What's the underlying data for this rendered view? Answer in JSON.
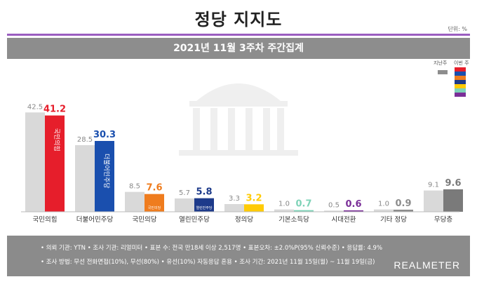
{
  "title": "정당 지지도",
  "unit_label": "단위: %",
  "subtitle": "2021년 11월 3주차 주간집계",
  "legend": {
    "prev_label": "지난주",
    "cur_label": "이번 주"
  },
  "colors": {
    "prev": "#d9d9d9",
    "parties": [
      "#e61e2b",
      "#1a4fae",
      "#ef7c1e",
      "#1d3a8a",
      "#ffcb05",
      "#7fd3b8",
      "#7a2f98",
      "#8c8c8c",
      "#7a7a7a"
    ]
  },
  "chart_data": {
    "type": "bar",
    "categories": [
      "국민의힘",
      "더불어민주당",
      "국민의당",
      "열린민주당",
      "정의당",
      "기본소득당",
      "시대전환",
      "기타 정당",
      "무당층"
    ],
    "series": [
      {
        "name": "지난주",
        "values": [
          42.5,
          28.5,
          8.5,
          5.7,
          3.3,
          1.0,
          0.5,
          1.0,
          9.1
        ]
      },
      {
        "name": "이번 주",
        "values": [
          41.2,
          30.3,
          7.6,
          5.8,
          3.2,
          0.7,
          0.6,
          0.9,
          9.6
        ]
      }
    ],
    "prev_labels": [
      "42.5",
      "28.5",
      "8.5",
      "5.7",
      "3.3",
      "1.0",
      "0.5",
      "1.0",
      "9.1"
    ],
    "cur_labels": [
      "41.2",
      "30.3",
      "7.6",
      "5.8",
      "3.2",
      "0.7",
      "0.6",
      "0.9",
      "9.6"
    ],
    "bar_logos": [
      "국민의힘",
      "더불어민주당",
      "국민의당",
      "열린민주당",
      "정의당",
      "",
      "",
      "",
      ""
    ],
    "ylim": [
      0,
      45
    ],
    "grid": false,
    "legend_position": "top-right"
  },
  "footer": {
    "line1": "• 의뢰 기관: YTN  • 조사 기관: 리얼미터  • 표본 수: 전국 만18세 이상 2,517명  • 표본오차: ±2.0%P(95% 신뢰수준)  • 응답률: 4.9%",
    "line2": "• 조사 방법: 무선 전화면접(10%), 무선(80%) • 유선(10%) 자동응답 혼용  • 조사 기간: 2021년 11월 15일(월) ~ 11월 19일(금)",
    "brand": "REALMETER"
  }
}
